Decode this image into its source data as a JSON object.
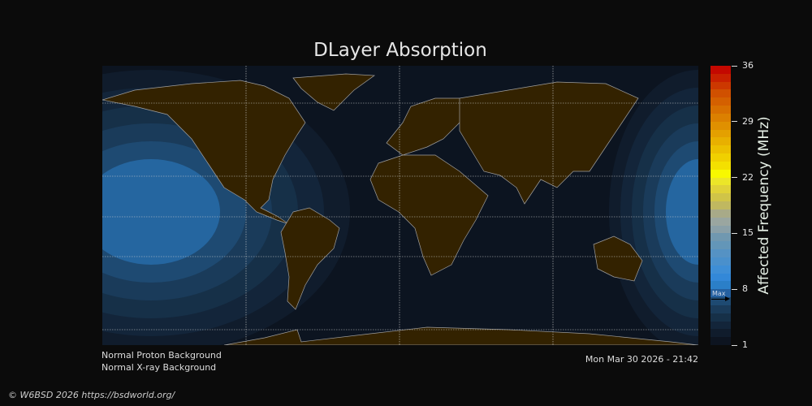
{
  "title": "DLayer Absorption",
  "colorbar": {
    "label": "Affected Frequency (MHz)",
    "ticks": [
      "36",
      "29",
      "22",
      "15",
      "8",
      "1"
    ],
    "range": [
      1,
      36
    ],
    "max_marker_label": "Max",
    "max_marker_value": 6.5,
    "colors": [
      "#0d1420",
      "#101c2c",
      "#13253a",
      "#163048",
      "#1a3b5a",
      "#1e4a72",
      "#2460a0",
      "#2b7fc8",
      "#3388d8",
      "#3e8ed6",
      "#4a90cc",
      "#5592c4",
      "#6396b8",
      "#7098b0",
      "#8aa0a8",
      "#9aa6a0",
      "#a8aa88",
      "#c0b860",
      "#d0c448",
      "#e0d238",
      "#ece628",
      "#f8f800",
      "#f4e000",
      "#f0d000",
      "#ecc000",
      "#e8b000",
      "#e4a000",
      "#e09000",
      "#dc8000",
      "#d87000",
      "#d46000",
      "#d05000",
      "#cc3800",
      "#c82000",
      "#c40800"
    ]
  },
  "map": {
    "ocean_color": "#0c1420",
    "land_color": "#332200",
    "coastline_color": "#a0a0a0",
    "absorption_colors": [
      "#101c2c",
      "#13253a",
      "#163048",
      "#1a3b5a",
      "#1e4a72",
      "#2566a0"
    ]
  },
  "status": {
    "proton": "Normal Proton Background",
    "xray": "Normal X-ray Background",
    "timestamp": "Mon Mar 30 2026 - 21:42"
  },
  "footer": "© W6BSD 2026 https://bsdworld.org/"
}
